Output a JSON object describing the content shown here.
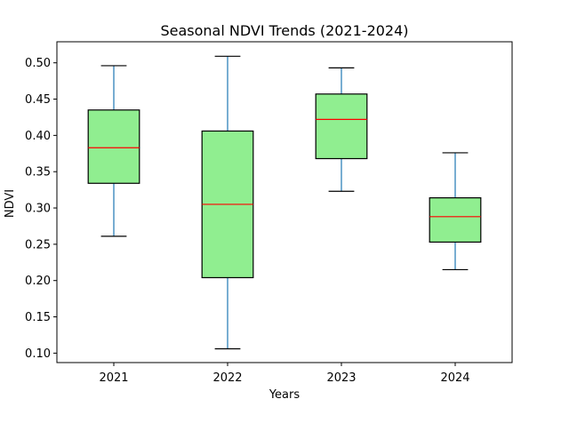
{
  "chart_data": {
    "type": "box",
    "title": "Seasonal NDVI Trends (2021-2024)",
    "xlabel": "Years",
    "ylabel": "NDVI",
    "ylim": [
      0.087,
      0.529
    ],
    "yticks": [
      "0.10",
      "0.15",
      "0.20",
      "0.25",
      "0.30",
      "0.35",
      "0.40",
      "0.45",
      "0.50"
    ],
    "grid": false,
    "categories": [
      "2021",
      "2022",
      "2023",
      "2024"
    ],
    "boxes": [
      {
        "label": "2021",
        "whisker_low": 0.261,
        "q1": 0.334,
        "median": 0.383,
        "q3": 0.435,
        "whisker_high": 0.496
      },
      {
        "label": "2022",
        "whisker_low": 0.106,
        "q1": 0.204,
        "median": 0.305,
        "q3": 0.406,
        "whisker_high": 0.509
      },
      {
        "label": "2023",
        "whisker_low": 0.323,
        "q1": 0.368,
        "median": 0.422,
        "q3": 0.457,
        "whisker_high": 0.493
      },
      {
        "label": "2024",
        "whisker_low": 0.215,
        "q1": 0.253,
        "median": 0.288,
        "q3": 0.314,
        "whisker_high": 0.376
      }
    ],
    "colors": {
      "box_fill": "#90ee90",
      "box_edge": "#000000",
      "median": "#ff0000",
      "whisker": "#1f77b4",
      "cap": "#000000"
    }
  }
}
